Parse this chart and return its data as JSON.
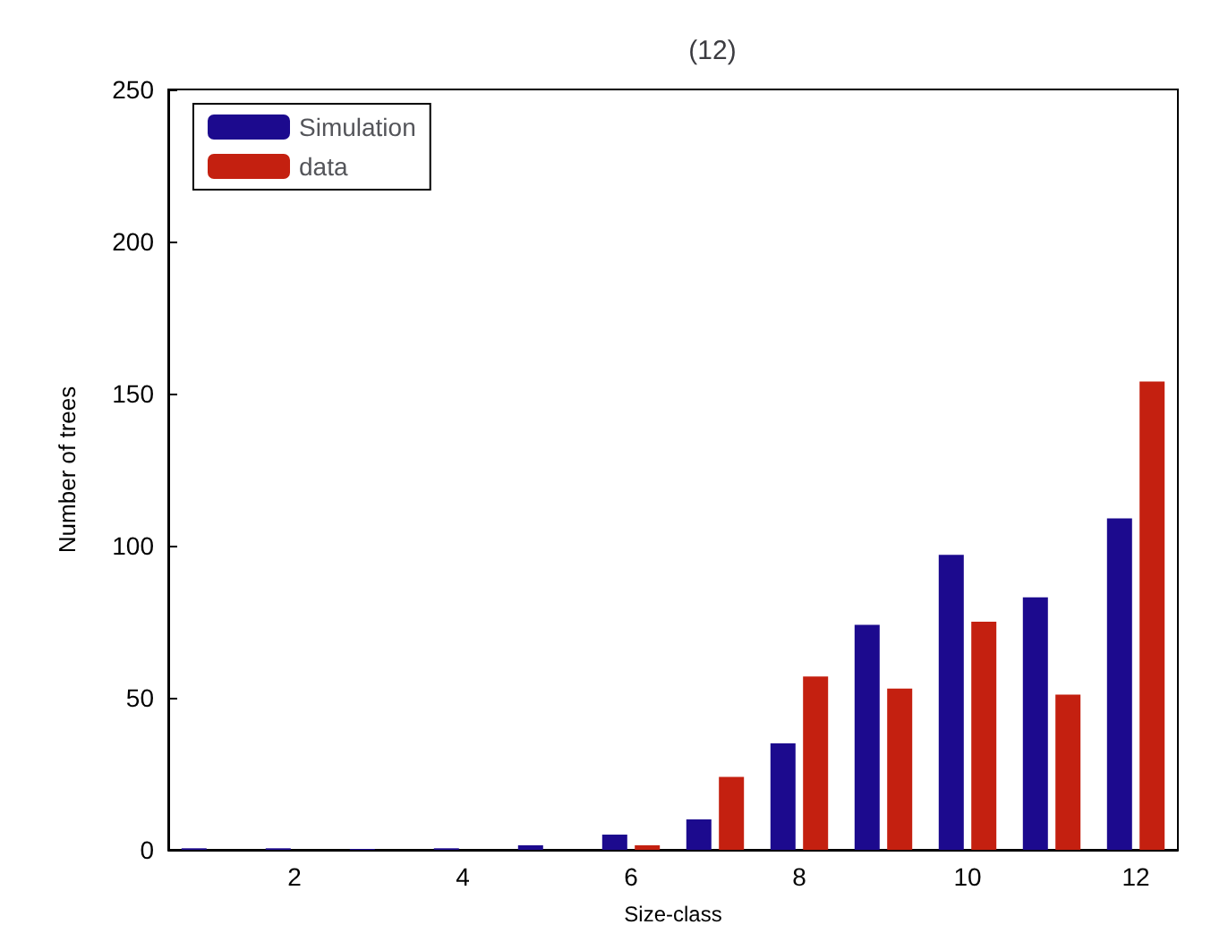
{
  "chart_data": {
    "type": "bar",
    "title": "(12)",
    "xlabel": "Size-class",
    "ylabel": "Number of trees",
    "categories": [
      null,
      "2",
      null,
      "4",
      null,
      "6",
      null,
      "8",
      null,
      "10",
      null,
      "12"
    ],
    "series": [
      {
        "name": "Simulation",
        "color": "#1c0a8e",
        "values": [
          0.5,
          0.5,
          0.3,
          0.5,
          1.5,
          5,
          10,
          35,
          74,
          97,
          83,
          109
        ]
      },
      {
        "name": "data",
        "color": "#c42010",
        "values": [
          null,
          null,
          null,
          null,
          null,
          1.5,
          24,
          57,
          53,
          75,
          51,
          154
        ]
      }
    ],
    "ylim": [
      0,
      250
    ],
    "yticks": [
      0,
      50,
      100,
      150,
      200,
      250
    ],
    "grid": false,
    "legend": "top left"
  }
}
